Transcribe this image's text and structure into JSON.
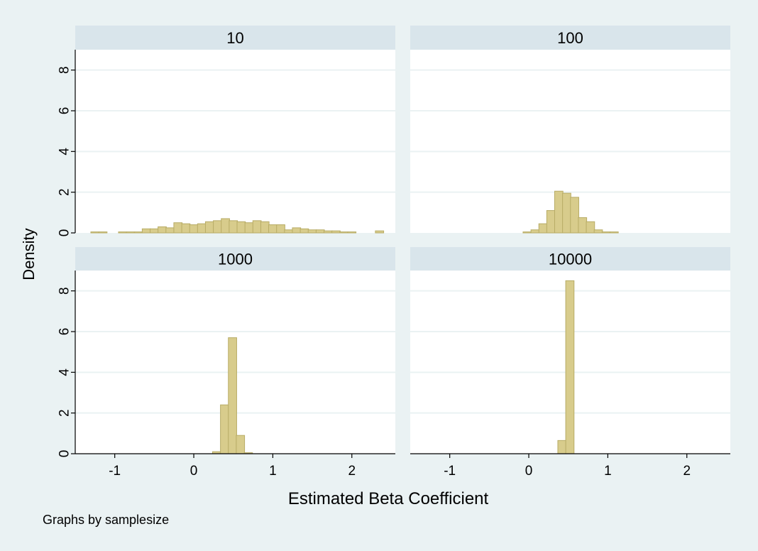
{
  "chart_data": {
    "type": "bar",
    "layout": "2x2 facet grid",
    "xlabel": "Estimated Beta Coefficient",
    "ylabel": "Density",
    "note": "Graphs by samplesize",
    "xlim": [
      -1.5,
      2.55
    ],
    "ylim": [
      0,
      9
    ],
    "xticks": [
      -1,
      0,
      1,
      2
    ],
    "yticks": [
      0,
      2,
      4,
      6,
      8
    ],
    "grid": true,
    "colors": {
      "background": "#eaf2f3",
      "panel": "#ffffff",
      "strip": "#d9e5eb",
      "bar_fill": "#d8cc8c",
      "bar_stroke": "#b8ac66",
      "grid": "#eaf2f3"
    },
    "panels": [
      {
        "label": "10",
        "bin_width": 0.105,
        "bins": [
          [
            -1.25,
            0.05
          ],
          [
            -1.15,
            0.05
          ],
          [
            -0.9,
            0.05
          ],
          [
            -0.8,
            0.05
          ],
          [
            -0.7,
            0.05
          ],
          [
            -0.6,
            0.2
          ],
          [
            -0.5,
            0.2
          ],
          [
            -0.4,
            0.3
          ],
          [
            -0.3,
            0.25
          ],
          [
            -0.2,
            0.5
          ],
          [
            -0.1,
            0.45
          ],
          [
            0.0,
            0.4
          ],
          [
            0.1,
            0.45
          ],
          [
            0.2,
            0.55
          ],
          [
            0.3,
            0.6
          ],
          [
            0.4,
            0.7
          ],
          [
            0.5,
            0.6
          ],
          [
            0.6,
            0.55
          ],
          [
            0.7,
            0.5
          ],
          [
            0.8,
            0.6
          ],
          [
            0.9,
            0.55
          ],
          [
            1.0,
            0.4
          ],
          [
            1.1,
            0.4
          ],
          [
            1.2,
            0.15
          ],
          [
            1.3,
            0.25
          ],
          [
            1.4,
            0.2
          ],
          [
            1.5,
            0.15
          ],
          [
            1.6,
            0.15
          ],
          [
            1.7,
            0.1
          ],
          [
            1.8,
            0.1
          ],
          [
            1.9,
            0.05
          ],
          [
            2.0,
            0.05
          ],
          [
            2.35,
            0.1
          ]
        ]
      },
      {
        "label": "100",
        "bin_width": 0.105,
        "bins": [
          [
            -0.02,
            0.05
          ],
          [
            0.08,
            0.15
          ],
          [
            0.18,
            0.45
          ],
          [
            0.28,
            1.1
          ],
          [
            0.38,
            2.05
          ],
          [
            0.48,
            1.95
          ],
          [
            0.58,
            1.75
          ],
          [
            0.68,
            0.75
          ],
          [
            0.78,
            0.55
          ],
          [
            0.88,
            0.15
          ],
          [
            0.98,
            0.05
          ],
          [
            1.08,
            0.05
          ]
        ]
      },
      {
        "label": "1000",
        "bin_width": 0.105,
        "bins": [
          [
            0.29,
            0.1
          ],
          [
            0.39,
            2.4
          ],
          [
            0.49,
            5.7
          ],
          [
            0.59,
            0.9
          ],
          [
            0.69,
            0.05
          ]
        ]
      },
      {
        "label": "10000",
        "bin_width": 0.105,
        "bins": [
          [
            0.42,
            0.65
          ],
          [
            0.52,
            8.5
          ]
        ]
      }
    ]
  }
}
